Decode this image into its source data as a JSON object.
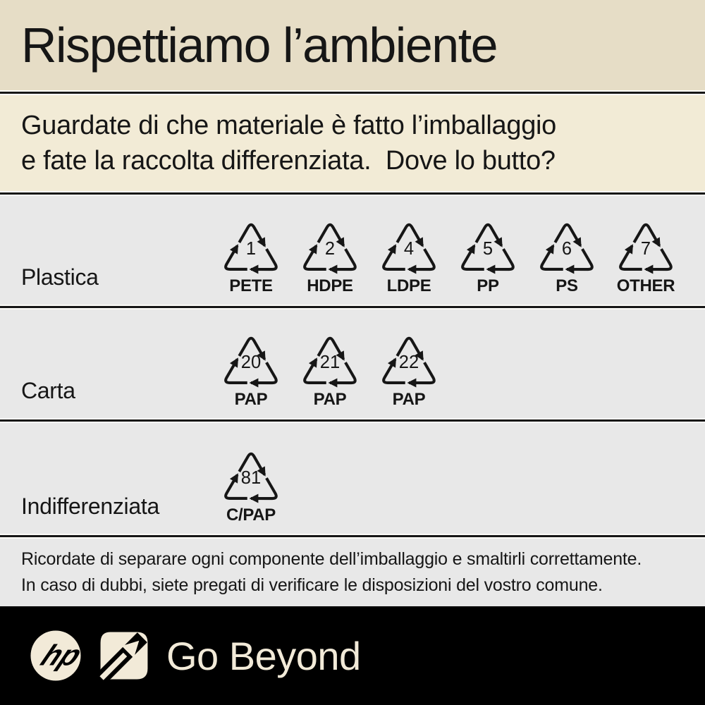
{
  "header": {
    "title": "Rispettiamo l’ambiente"
  },
  "intro": {
    "line1": "Guardate di che materiale è fatto l’imballaggio",
    "line2": "e fate la raccolta differenziata.  Dove lo butto?"
  },
  "rows": [
    {
      "label": "Plastica",
      "symbols": [
        {
          "code": "1",
          "material": "PETE"
        },
        {
          "code": "2",
          "material": "HDPE"
        },
        {
          "code": "4",
          "material": "LDPE"
        },
        {
          "code": "5",
          "material": "PP"
        },
        {
          "code": "6",
          "material": "PS"
        },
        {
          "code": "7",
          "material": "OTHER"
        }
      ]
    },
    {
      "label": "Carta",
      "symbols": [
        {
          "code": "20",
          "material": "PAP"
        },
        {
          "code": "21",
          "material": "PAP"
        },
        {
          "code": "22",
          "material": "PAP"
        }
      ]
    },
    {
      "label": "Indifferenziata",
      "symbols": [
        {
          "code": "81",
          "material": "C/PAP"
        }
      ]
    }
  ],
  "note": {
    "line1": "Ricordate di separare ogni componente dell’imballaggio e smaltirli correttamente.",
    "line2": "In caso di dubbi, siete pregati di verificare le disposizioni del vostro comune."
  },
  "footer": {
    "brand": "hp",
    "tagline": "Go Beyond"
  },
  "colors": {
    "cream_top": "#e6ddc6",
    "cream_intro": "#f2ebd6",
    "gray_section": "#e8e8e8",
    "ink": "#161616",
    "footer_bg": "#000000",
    "footer_cream": "#f2ead8"
  }
}
